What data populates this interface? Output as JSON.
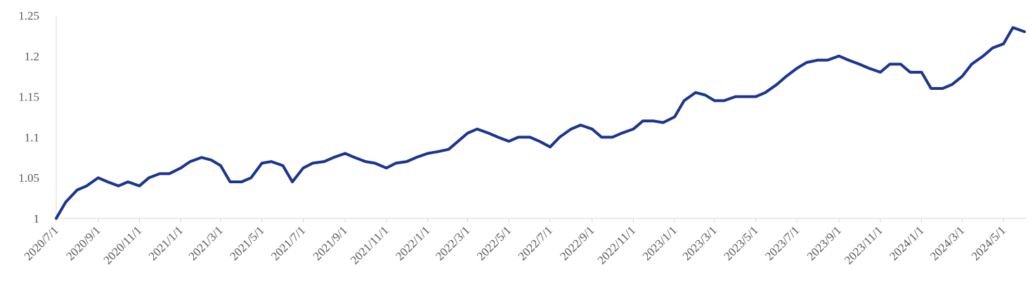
{
  "chart_data": {
    "type": "line",
    "x": [
      "2020/7/1",
      "2020/7/15",
      "2020/8/1",
      "2020/8/15",
      "2020/9/1",
      "2020/9/15",
      "2020/10/1",
      "2020/10/15",
      "2020/11/1",
      "2020/11/15",
      "2020/12/1",
      "2020/12/15",
      "2021/1/1",
      "2021/1/15",
      "2021/2/1",
      "2021/2/15",
      "2021/3/1",
      "2021/3/15",
      "2021/4/1",
      "2021/4/15",
      "2021/5/1",
      "2021/5/15",
      "2021/6/1",
      "2021/6/15",
      "2021/7/1",
      "2021/7/15",
      "2021/8/1",
      "2021/8/15",
      "2021/9/1",
      "2021/9/15",
      "2021/10/1",
      "2021/10/15",
      "2021/11/1",
      "2021/11/15",
      "2021/12/1",
      "2021/12/15",
      "2022/1/1",
      "2022/1/15",
      "2022/2/1",
      "2022/2/15",
      "2022/3/1",
      "2022/3/15",
      "2022/4/1",
      "2022/4/15",
      "2022/5/1",
      "2022/5/15",
      "2022/6/1",
      "2022/6/15",
      "2022/7/1",
      "2022/7/15",
      "2022/8/1",
      "2022/8/15",
      "2022/9/1",
      "2022/9/15",
      "2022/10/1",
      "2022/10/15",
      "2022/11/1",
      "2022/11/15",
      "2022/12/1",
      "2022/12/15",
      "2023/1/1",
      "2023/1/15",
      "2023/2/1",
      "2023/2/15",
      "2023/3/1",
      "2023/3/15",
      "2023/4/1",
      "2023/4/15",
      "2023/5/1",
      "2023/5/15",
      "2023/6/1",
      "2023/6/15",
      "2023/7/1",
      "2023/7/15",
      "2023/8/1",
      "2023/8/15",
      "2023/9/1",
      "2023/9/15",
      "2023/10/1",
      "2023/10/15",
      "2023/11/1",
      "2023/11/15",
      "2023/12/1",
      "2023/12/15",
      "2024/1/1",
      "2024/1/15",
      "2024/2/1",
      "2024/2/15",
      "2024/3/1",
      "2024/3/15",
      "2024/4/1",
      "2024/4/15",
      "2024/5/1",
      "2024/5/15",
      "2024/6/1"
    ],
    "series": [
      {
        "color": "#1a3590",
        "values": [
          1.0,
          1.02,
          1.035,
          1.04,
          1.05,
          1.045,
          1.04,
          1.045,
          1.04,
          1.05,
          1.055,
          1.055,
          1.062,
          1.07,
          1.075,
          1.072,
          1.065,
          1.045,
          1.045,
          1.05,
          1.068,
          1.07,
          1.065,
          1.045,
          1.062,
          1.068,
          1.07,
          1.075,
          1.08,
          1.075,
          1.07,
          1.068,
          1.062,
          1.068,
          1.07,
          1.075,
          1.08,
          1.082,
          1.085,
          1.095,
          1.105,
          1.11,
          1.105,
          1.1,
          1.095,
          1.1,
          1.1,
          1.095,
          1.088,
          1.1,
          1.11,
          1.115,
          1.11,
          1.1,
          1.1,
          1.105,
          1.11,
          1.12,
          1.12,
          1.118,
          1.125,
          1.145,
          1.155,
          1.152,
          1.145,
          1.145,
          1.15,
          1.15,
          1.15,
          1.155,
          1.165,
          1.175,
          1.185,
          1.192,
          1.195,
          1.195,
          1.2,
          1.195,
          1.19,
          1.185,
          1.18,
          1.19,
          1.19,
          1.18,
          1.18,
          1.16,
          1.16,
          1.165,
          1.175,
          1.19,
          1.2,
          1.21,
          1.215,
          1.235,
          1.23
        ]
      }
    ],
    "xlim": [
      "2020/7/1",
      "2024/6/1"
    ],
    "xticks": [
      "2020/7/1",
      "2020/9/1",
      "2020/11/1",
      "2021/1/1",
      "2021/3/1",
      "2021/5/1",
      "2021/7/1",
      "2021/9/1",
      "2021/11/1",
      "2022/1/1",
      "2022/3/1",
      "2022/5/1",
      "2022/7/1",
      "2022/9/1",
      "2022/11/1",
      "2023/1/1",
      "2023/3/1",
      "2023/5/1",
      "2023/7/1",
      "2023/9/1",
      "2023/11/1",
      "2024/1/1",
      "2024/3/1",
      "2024/5/1"
    ],
    "ylim": [
      1,
      1.25
    ],
    "yticks": [
      1,
      1.05,
      1.1,
      1.15,
      1.2,
      1.25
    ],
    "grid": false
  }
}
